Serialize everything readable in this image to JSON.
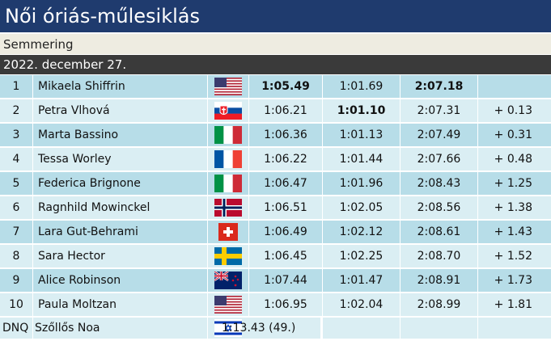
{
  "header": {
    "title": "Női óriás-műlesiklás",
    "venue": "Semmering",
    "date": "2022. december 27."
  },
  "table": {
    "rows": [
      {
        "rank": "1",
        "name": "Mikaela Shiffrin",
        "run1": "1:05.49",
        "run2": "1:01.69",
        "total": "2:07.18",
        "bold": [
          "run1",
          "total"
        ]
      },
      {
        "rank": "2",
        "name": "Petra Vlhová",
        "run1": "1:06.21",
        "run2": "1:01.10",
        "total": "2:07.31",
        "diff": "+ 0.13",
        "bold": [
          "run2"
        ]
      },
      {
        "rank": "3",
        "name": "Marta Bassino",
        "run1": "1:06.36",
        "run2": "1:01.13",
        "total": "2:07.49",
        "diff": "+ 0.31"
      },
      {
        "rank": "4",
        "name": "Tessa Worley",
        "run1": "1:06.22",
        "run2": "1:01.44",
        "total": "2:07.66",
        "diff": "+ 0.48"
      },
      {
        "rank": "5",
        "name": "Federica Brignone",
        "run1": "1:06.47",
        "run2": "1:01.96",
        "total": "2:08.43",
        "diff": "+ 1.25"
      },
      {
        "rank": "6",
        "name": "Ragnhild Mowinckel",
        "run1": "1:06.51",
        "run2": "1:02.05",
        "total": "2:08.56",
        "diff": "+ 1.38"
      },
      {
        "rank": "7",
        "name": "Lara Gut-Behrami",
        "run1": "1:06.49",
        "run2": "1:02.12",
        "total": "2:08.61",
        "diff": "+ 1.43"
      },
      {
        "rank": "8",
        "name": "Sara Hector",
        "run1": "1:06.45",
        "run2": "1:02.25",
        "total": "2:08.70",
        "diff": "+ 1.52"
      },
      {
        "rank": "9",
        "name": "Alice Robinson",
        "run1": "1:07.44",
        "run2": "1:01.47",
        "total": "2:08.91",
        "diff": "+ 1.73"
      },
      {
        "rank": "10",
        "name": "Paula Moltzan",
        "run1": "1:06.95",
        "run2": "1:02.04",
        "total": "2:08.99",
        "diff": "+ 1.81"
      }
    ],
    "dnq": {
      "rank": "DNQ",
      "name": "Szőllős Noa",
      "result": "1:13.43 (49.)"
    }
  }
}
